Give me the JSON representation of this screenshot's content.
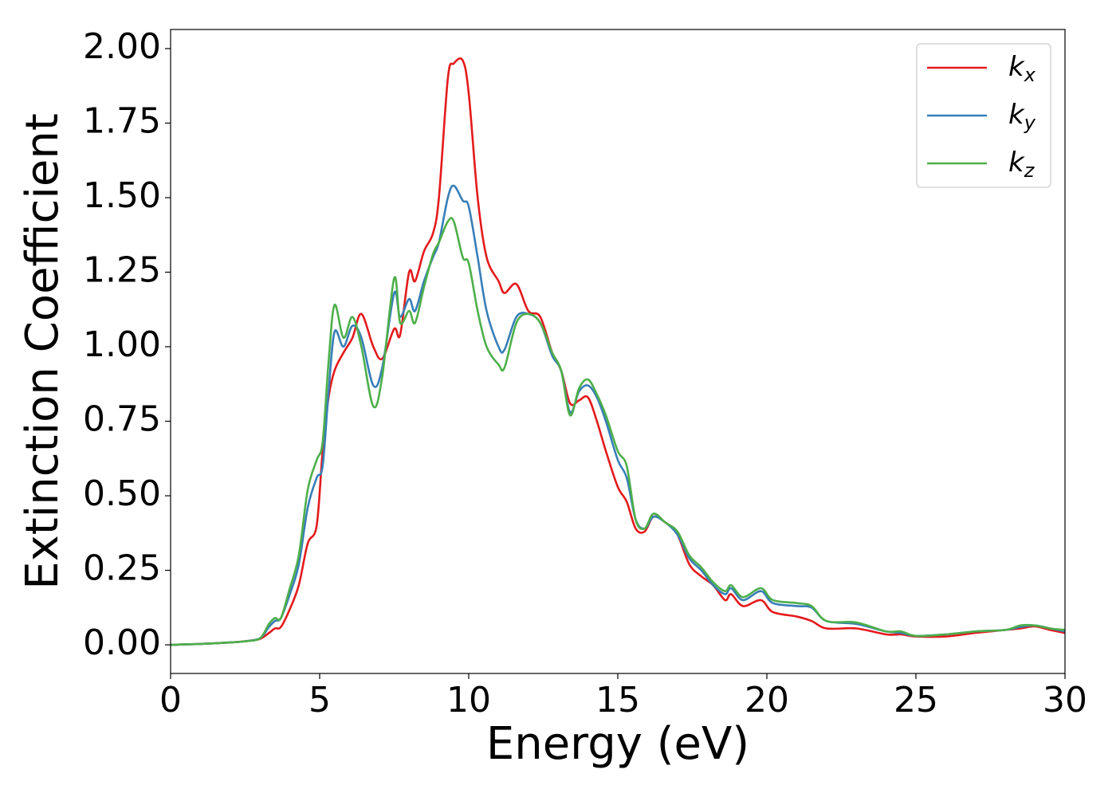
{
  "chart_data": {
    "type": "line",
    "xlabel": "Energy (eV)",
    "ylabel": "Extinction Coefficient",
    "x": [
      0,
      1,
      2,
      2.5,
      3,
      3.3,
      3.5,
      3.7,
      4,
      4.3,
      4.6,
      4.9,
      5.1,
      5.3,
      5.5,
      5.8,
      6.1,
      6.4,
      6.8,
      7.1,
      7.5,
      7.7,
      8,
      8.2,
      8.5,
      8.8,
      9,
      9.3,
      9.5,
      9.8,
      10,
      10.3,
      10.6,
      11,
      11.2,
      11.6,
      12,
      12.4,
      12.8,
      13.1,
      13.4,
      13.7,
      14,
      14.3,
      14.6,
      15,
      15.3,
      15.6,
      15.9,
      16.2,
      16.6,
      17,
      17.4,
      17.8,
      18.2,
      18.6,
      18.8,
      19.2,
      19.8,
      20.2,
      21,
      21.5,
      22,
      23,
      24,
      24.5,
      25,
      26,
      27,
      28,
      28.5,
      29,
      29.5,
      30
    ],
    "series": [
      {
        "name": "kx",
        "color": "#e41a1c",
        "values": [
          0,
          0.003,
          0.008,
          0.012,
          0.02,
          0.04,
          0.055,
          0.06,
          0.12,
          0.2,
          0.34,
          0.4,
          0.65,
          0.83,
          0.92,
          0.98,
          1.03,
          1.11,
          1.0,
          0.96,
          1.06,
          1.04,
          1.25,
          1.22,
          1.32,
          1.38,
          1.5,
          1.9,
          1.95,
          1.96,
          1.85,
          1.5,
          1.3,
          1.22,
          1.18,
          1.21,
          1.12,
          1.1,
          0.98,
          0.92,
          0.81,
          0.82,
          0.83,
          0.75,
          0.65,
          0.53,
          0.48,
          0.39,
          0.38,
          0.43,
          0.41,
          0.37,
          0.27,
          0.23,
          0.2,
          0.15,
          0.17,
          0.13,
          0.15,
          0.11,
          0.095,
          0.08,
          0.055,
          0.055,
          0.035,
          0.035,
          0.028,
          0.028,
          0.04,
          0.05,
          0.055,
          0.062,
          0.05,
          0.04
        ]
      },
      {
        "name": "ky",
        "color": "#377eb8",
        "values": [
          0,
          0.003,
          0.008,
          0.012,
          0.022,
          0.06,
          0.08,
          0.09,
          0.17,
          0.27,
          0.46,
          0.56,
          0.6,
          0.85,
          1.05,
          1.0,
          1.07,
          1.03,
          0.87,
          0.93,
          1.18,
          1.1,
          1.16,
          1.12,
          1.22,
          1.3,
          1.35,
          1.5,
          1.54,
          1.49,
          1.47,
          1.3,
          1.12,
          1.0,
          0.99,
          1.1,
          1.11,
          1.08,
          0.97,
          0.92,
          0.78,
          0.85,
          0.87,
          0.83,
          0.75,
          0.62,
          0.56,
          0.42,
          0.39,
          0.43,
          0.41,
          0.37,
          0.29,
          0.25,
          0.2,
          0.17,
          0.19,
          0.15,
          0.18,
          0.14,
          0.13,
          0.125,
          0.08,
          0.07,
          0.045,
          0.04,
          0.03,
          0.035,
          0.045,
          0.05,
          0.06,
          0.065,
          0.055,
          0.045
        ]
      },
      {
        "name": "kz",
        "color": "#4daf4a",
        "values": [
          0,
          0.003,
          0.008,
          0.012,
          0.022,
          0.07,
          0.09,
          0.09,
          0.19,
          0.3,
          0.52,
          0.62,
          0.68,
          0.95,
          1.14,
          1.03,
          1.1,
          1.0,
          0.8,
          0.9,
          1.23,
          1.08,
          1.12,
          1.08,
          1.2,
          1.31,
          1.35,
          1.42,
          1.42,
          1.3,
          1.28,
          1.12,
          1.0,
          0.94,
          0.93,
          1.08,
          1.11,
          1.08,
          0.98,
          0.92,
          0.77,
          0.86,
          0.89,
          0.84,
          0.77,
          0.65,
          0.6,
          0.42,
          0.39,
          0.44,
          0.41,
          0.38,
          0.3,
          0.26,
          0.21,
          0.18,
          0.2,
          0.16,
          0.19,
          0.15,
          0.14,
          0.13,
          0.08,
          0.075,
          0.045,
          0.045,
          0.03,
          0.035,
          0.045,
          0.05,
          0.065,
          0.065,
          0.055,
          0.05
        ]
      }
    ],
    "xlim": [
      0,
      30
    ],
    "xticks": [
      0,
      5,
      10,
      15,
      20,
      25,
      30
    ],
    "ylim": [
      -0.096,
      2.064
    ],
    "yticks": [
      {
        "value": 0,
        "label": "0.00"
      },
      {
        "value": 0.25,
        "label": "0.25"
      },
      {
        "value": 0.5,
        "label": "0.50"
      },
      {
        "value": 0.75,
        "label": "0.75"
      },
      {
        "value": 1,
        "label": "1.00"
      },
      {
        "value": 1.25,
        "label": "1.25"
      },
      {
        "value": 1.5,
        "label": "1.50"
      },
      {
        "value": 1.75,
        "label": "1.75"
      },
      {
        "value": 2,
        "label": "2.00"
      }
    ],
    "legend": "upper right",
    "grid": false
  }
}
